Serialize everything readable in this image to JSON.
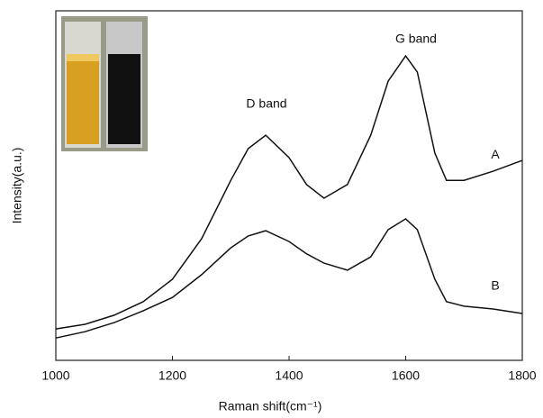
{
  "chart_data": {
    "type": "line",
    "x_label": "Raman shift(cm⁻¹)",
    "y_label": "Intensity(a.u.)",
    "annotations": [
      "D band",
      "G band"
    ],
    "x": [
      1000,
      1050,
      1100,
      1150,
      1200,
      1250,
      1300,
      1330,
      1360,
      1400,
      1430,
      1460,
      1500,
      1540,
      1570,
      1600,
      1620,
      1650,
      1670,
      1700,
      1750,
      1800
    ],
    "series": [
      {
        "name": "A",
        "color": "#111111",
        "values": [
          9.0,
          10.3,
          12.9,
          16.8,
          23.2,
          34.8,
          51.5,
          60.6,
          64.4,
          58.0,
          50.3,
          46.4,
          50.3,
          64.4,
          79.9,
          87.1,
          82.5,
          59.3,
          51.5,
          51.5,
          54.1,
          57.2
        ]
      },
      {
        "name": "B",
        "color": "#111111",
        "values": [
          6.4,
          8.2,
          10.8,
          14.2,
          18.0,
          24.5,
          32.2,
          35.6,
          37.1,
          34.0,
          30.5,
          27.8,
          25.8,
          29.6,
          37.4,
          40.5,
          37.4,
          23.2,
          16.8,
          15.5,
          14.7,
          13.4
        ]
      }
    ],
    "xlim": [
      1000,
      1800
    ],
    "xticks": [
      1000,
      1200,
      1400,
      1600,
      1800
    ],
    "ylim": [
      0,
      100
    ]
  }
}
